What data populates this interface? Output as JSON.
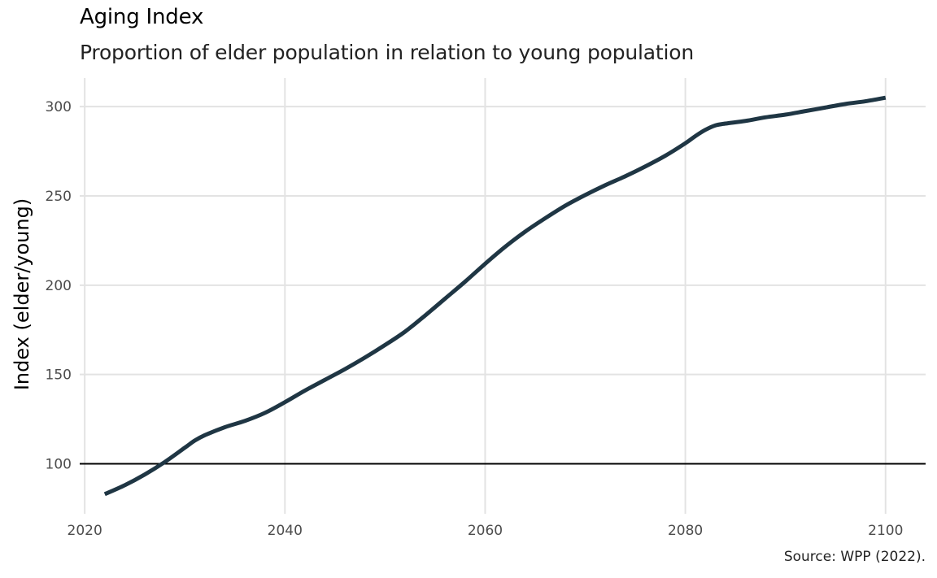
{
  "chart_data": {
    "type": "line",
    "title": "Aging Index",
    "subtitle": "Proportion of elder population in relation to young population",
    "caption": "Source: WPP (2022).",
    "xlabel": "",
    "ylabel": "Index (elder/young)",
    "xlim": [
      2019.5,
      2104
    ],
    "ylim": [
      72,
      316
    ],
    "xticks": [
      2020,
      2040,
      2060,
      2080,
      2100
    ],
    "yticks": [
      100,
      150,
      200,
      250,
      300
    ],
    "reference_line": {
      "y": 100,
      "color": "#000000"
    },
    "grid": true,
    "series": [
      {
        "color": "#1f3644",
        "x": [
          2022,
          2024,
          2026,
          2028,
          2030,
          2031,
          2032,
          2034,
          2036,
          2038,
          2040,
          2042,
          2044,
          2046,
          2048,
          2050,
          2052,
          2054,
          2056,
          2058,
          2060,
          2062,
          2064,
          2066,
          2068,
          2070,
          2072,
          2074,
          2076,
          2078,
          2080,
          2081,
          2082,
          2083,
          2084,
          2086,
          2088,
          2090,
          2092,
          2094,
          2096,
          2098,
          2100
        ],
        "y": [
          83,
          88,
          94,
          101,
          109,
          113,
          116,
          120.5,
          124,
          128.5,
          134.5,
          141,
          147,
          153,
          159.5,
          166.5,
          174,
          183,
          192.5,
          202,
          212,
          221.5,
          230,
          237.5,
          244.5,
          250.5,
          256,
          261,
          266.5,
          272.5,
          279.5,
          283.5,
          287,
          289.5,
          290.5,
          292,
          294,
          295.5,
          297.5,
          299.5,
          301.5,
          303,
          305
        ]
      }
    ]
  }
}
